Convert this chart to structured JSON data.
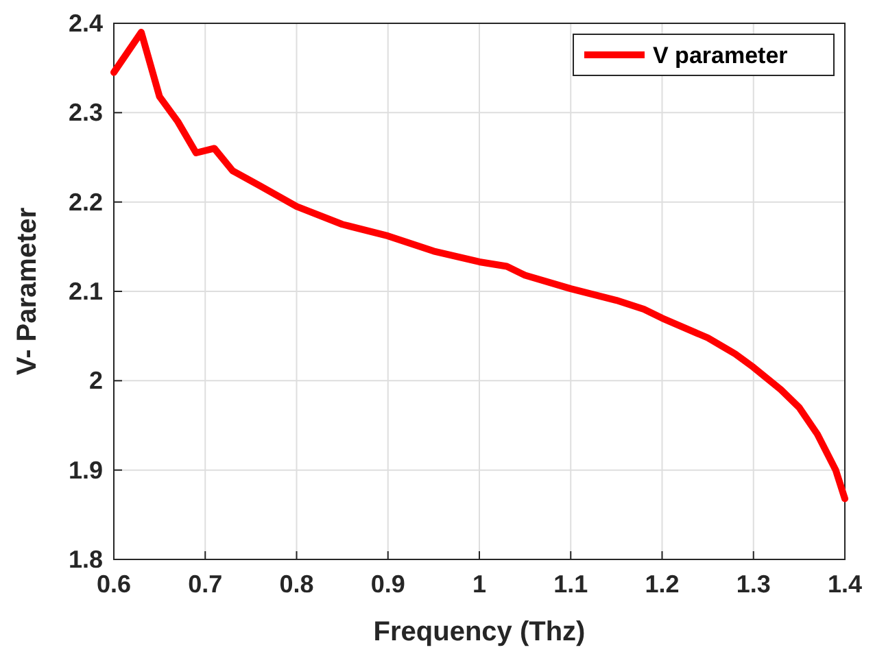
{
  "chart_data": {
    "type": "line",
    "xlabel": "Frequency (Thz)",
    "ylabel": "V- Parameter",
    "xlim": [
      0.6,
      1.4
    ],
    "xticks": [
      0.6,
      0.7,
      0.8,
      0.9,
      1,
      1.1,
      1.2,
      1.3,
      1.4
    ],
    "ylim": [
      1.8,
      2.4
    ],
    "yticks": [
      1.8,
      1.9,
      2,
      2.1,
      2.2,
      2.3,
      2.4
    ],
    "grid": true,
    "legend": "top right",
    "marker": "none",
    "line_style": "solid",
    "series": [
      {
        "name": "V parameter",
        "color": "#ff0000",
        "x": [
          0.6,
          0.63,
          0.65,
          0.67,
          0.69,
          0.71,
          0.73,
          0.76,
          0.8,
          0.85,
          0.9,
          0.95,
          1.0,
          1.03,
          1.05,
          1.1,
          1.15,
          1.18,
          1.2,
          1.25,
          1.28,
          1.3,
          1.33,
          1.35,
          1.37,
          1.39,
          1.4
        ],
        "values": [
          2.345,
          2.39,
          2.318,
          2.29,
          2.255,
          2.26,
          2.235,
          2.218,
          2.195,
          2.175,
          2.162,
          2.145,
          2.133,
          2.128,
          2.118,
          2.103,
          2.09,
          2.08,
          2.07,
          2.048,
          2.03,
          2.015,
          1.99,
          1.97,
          1.94,
          1.9,
          1.868
        ]
      }
    ]
  }
}
